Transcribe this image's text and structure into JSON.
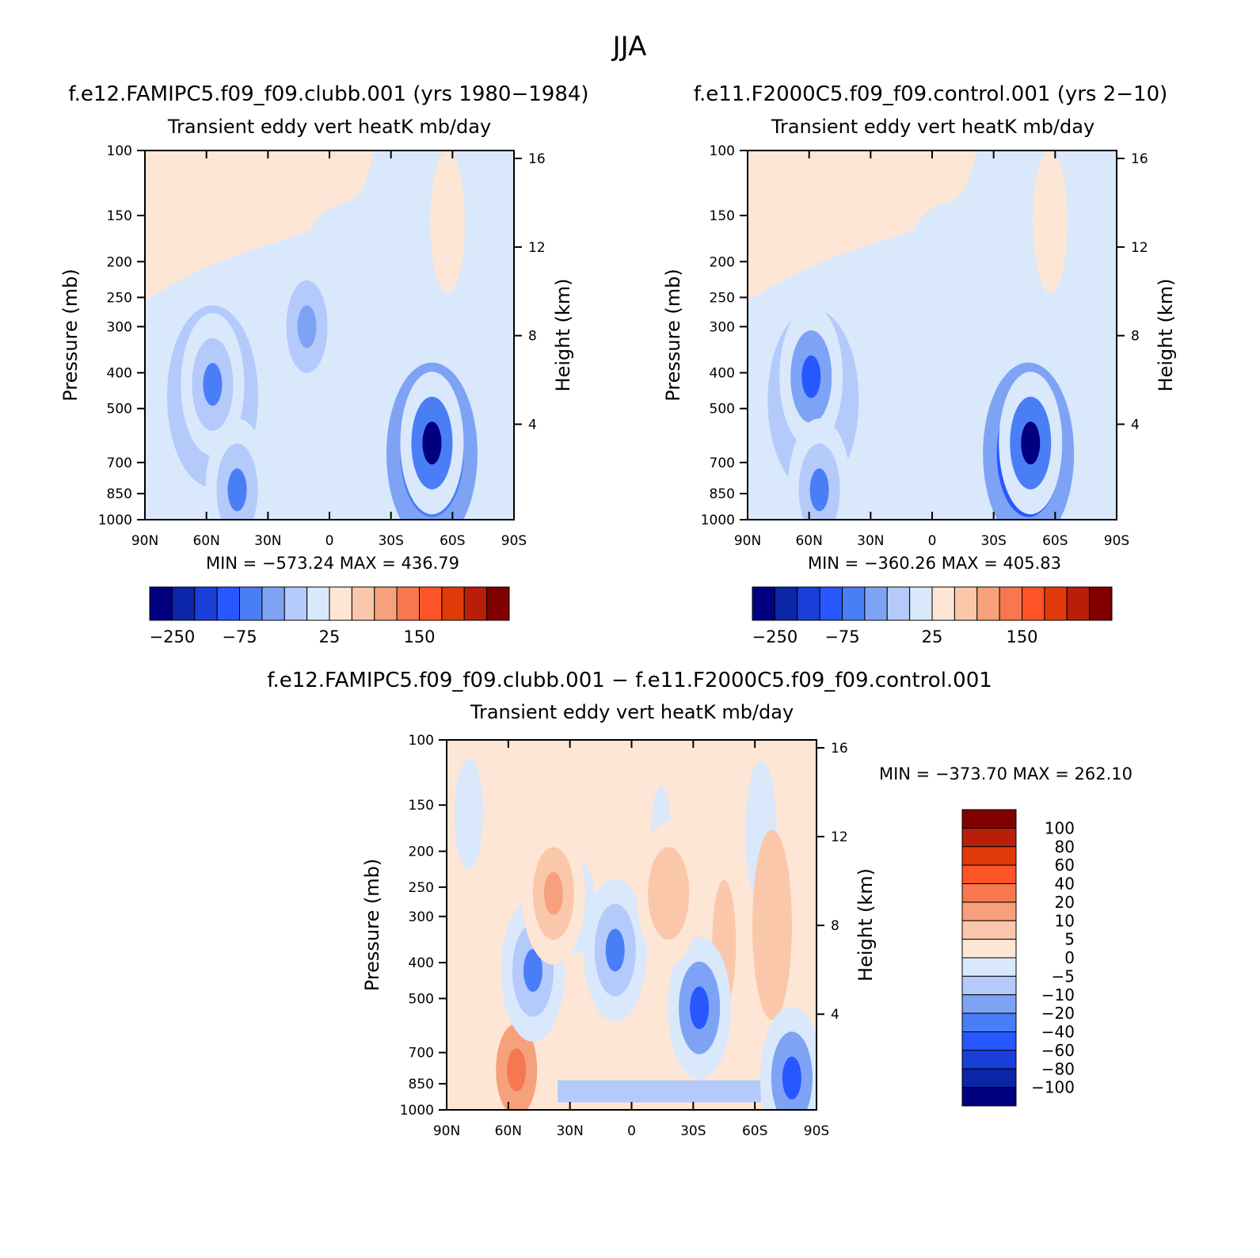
{
  "figure_title": "JJA",
  "colors": {
    "levels11": [
      "#000080",
      "#0b24a8",
      "#1a3ed8",
      "#2758ff",
      "#4a7ef7",
      "#7ea3f5",
      "#b4cafb",
      "#d9e8fb",
      "#fde6d5",
      "#fbc7aa",
      "#f7a07c",
      "#f7774f",
      "#ff5428",
      "#e03a08",
      "#b81e0a",
      "#800000"
    ],
    "diff": [
      "#000080",
      "#0b24a8",
      "#1a3ed8",
      "#2758ff",
      "#4a7ef7",
      "#7ea3f5",
      "#b4cafb",
      "#d9e8fb",
      "#fde6d5",
      "#fbc7aa",
      "#f7a07c",
      "#f7774f",
      "#ff5428",
      "#e03a08",
      "#b81e0a",
      "#800000"
    ]
  },
  "chart_data": [
    {
      "type": "heatmap",
      "id": "panel1",
      "case_title": "f.e12.FAMIPC5.f09_f09.clubb.001 (yrs 1980−1984)",
      "title": "Transient eddy vert heatK mb/day",
      "ylabel": "Pressure (mb)",
      "y2label": "Height (km)",
      "x_ticks": [
        "90N",
        "60N",
        "30N",
        "0",
        "30S",
        "60S",
        "90S"
      ],
      "x_range": [
        90,
        -90
      ],
      "y_ticks": [
        100,
        150,
        200,
        250,
        300,
        400,
        500,
        700,
        850,
        1000
      ],
      "y_range": [
        100,
        1000
      ],
      "height_ticks": [
        16,
        12,
        8,
        4
      ],
      "min_label": "MIN = −573.24",
      "max_label": "MAX = 436.79",
      "colorbar_labels": [
        "−250",
        "−75",
        "25",
        "150"
      ],
      "features": [
        {
          "lat": 57,
          "p": 420,
          "level": 5,
          "size": "broad"
        },
        {
          "lat": 57,
          "p": 430,
          "level": 4,
          "size": "core"
        },
        {
          "lat": 11,
          "p": 300,
          "level": 5,
          "size": "core"
        },
        {
          "lat": -50,
          "p": 600,
          "level": 2,
          "size": "broad"
        },
        {
          "lat": -50,
          "p": 620,
          "level": 0,
          "size": "core"
        },
        {
          "lat": 45,
          "p": 830,
          "level": 4,
          "size": "core"
        }
      ]
    },
    {
      "type": "heatmap",
      "id": "panel2",
      "case_title": "f.e11.F2000C5.f09_f09.control.001 (yrs 2−10)",
      "title": "Transient eddy vert heatK mb/day",
      "ylabel": "Pressure (mb)",
      "y2label": "Height (km)",
      "x_ticks": [
        "90N",
        "60N",
        "30N",
        "0",
        "30S",
        "60S",
        "90S"
      ],
      "x_range": [
        90,
        -90
      ],
      "y_ticks": [
        100,
        150,
        200,
        250,
        300,
        400,
        500,
        700,
        850,
        1000
      ],
      "y_range": [
        100,
        1000
      ],
      "height_ticks": [
        16,
        12,
        8,
        4
      ],
      "min_label": "MIN = −360.26",
      "max_label": "MAX = 405.83",
      "colorbar_labels": [
        "−250",
        "−75",
        "25",
        "150"
      ],
      "features": [
        {
          "lat": 58,
          "p": 430,
          "level": 5,
          "size": "broad"
        },
        {
          "lat": 59,
          "p": 410,
          "level": 3,
          "size": "core"
        },
        {
          "lat": -47,
          "p": 600,
          "level": 1,
          "size": "broad"
        },
        {
          "lat": -48,
          "p": 620,
          "level": 0,
          "size": "core"
        },
        {
          "lat": 55,
          "p": 830,
          "level": 4,
          "size": "core"
        }
      ]
    },
    {
      "type": "heatmap",
      "id": "panel3",
      "case_title": "f.e12.FAMIPC5.f09_f09.clubb.001 − f.e11.F2000C5.f09_f09.control.001",
      "title": "Transient eddy vert heatK mb/day",
      "ylabel": "Pressure (mb)",
      "y2label": "Height (km)",
      "x_ticks": [
        "90N",
        "60N",
        "30N",
        "0",
        "30S",
        "60S",
        "90S"
      ],
      "x_range": [
        90,
        -90
      ],
      "y_ticks": [
        100,
        150,
        200,
        250,
        300,
        400,
        500,
        700,
        850,
        1000
      ],
      "y_range": [
        100,
        1000
      ],
      "height_ticks": [
        16,
        12,
        8,
        4
      ],
      "min_label": "MIN = −373.70",
      "max_label": "MAX = 262.10",
      "colorbar_labels": [
        "100",
        "80",
        "60",
        "40",
        "20",
        "10",
        "5",
        "0",
        "−5",
        "−10",
        "−20",
        "−40",
        "−60",
        "−80",
        "−100"
      ],
      "features": [
        {
          "lat": 56,
          "p": 780,
          "level": 11,
          "size": "core"
        },
        {
          "lat": 48,
          "p": 420,
          "level": 4,
          "size": "core"
        },
        {
          "lat": 8,
          "p": 370,
          "level": 4,
          "size": "core"
        },
        {
          "lat": -33,
          "p": 530,
          "level": 3,
          "size": "core"
        },
        {
          "lat": -78,
          "p": 820,
          "level": 3,
          "size": "core"
        },
        {
          "lat": 38,
          "p": 260,
          "level": 10,
          "size": "core"
        },
        {
          "lat": -18,
          "p": 260,
          "level": 9,
          "size": "core"
        }
      ]
    }
  ]
}
